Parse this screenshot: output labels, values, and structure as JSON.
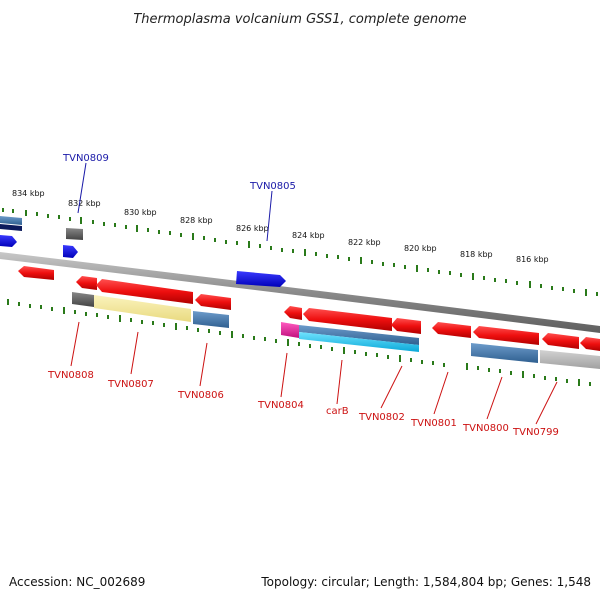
{
  "title": "Thermoplasma volcanium GSS1, complete genome",
  "footer": {
    "accession": "Accession: NC_002689",
    "summary": "Topology: circular; Length: 1,584,804 bp; Genes: 1,548"
  },
  "colors": {
    "cds": "#ee1111",
    "blue_feature": "#1010dd",
    "steel": "#4a7fb0",
    "gray_feature": "#666666",
    "light_gray": "#b8b8b8",
    "yellow_feature": "#f2e79a",
    "cyan_feature": "#1ec8f0",
    "magenta_feature": "#e0209a",
    "tick_green": "#2a7a1a",
    "label_blue": "#1a1aa8",
    "label_red": "#cc1111",
    "backbone": "#8a8a8a"
  },
  "kbp_labels": [
    "834 kbp",
    "832 kbp",
    "830 kbp",
    "828 kbp",
    "826 kbp",
    "824 kbp",
    "822 kbp",
    "820 kbp",
    "818 kbp",
    "816 kbp"
  ],
  "top_gene_labels": [
    "TVN0809",
    "TVN0805"
  ],
  "bottom_gene_labels": [
    "TVN0808",
    "TVN0807",
    "TVN0806",
    "TVN0804",
    "carB",
    "TVN0802",
    "TVN0801",
    "TVN0800",
    "TVN0799"
  ]
}
